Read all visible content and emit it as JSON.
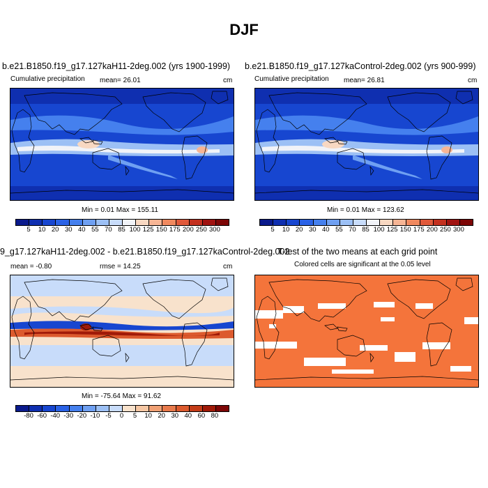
{
  "title": "DJF",
  "panel1": {
    "case": "b.e21.B1850.f19_g17.127kaH11-2deg.002 (yrs 1900-1999)",
    "left_label": "Cumulative precipitation",
    "mean": "mean=  26.01",
    "units": "cm",
    "minmax": "Min =  0.01 Max = 155.11"
  },
  "panel2": {
    "case": "b.e21.B1850.f19_g17.127kaControl-2deg.002 (yrs 900-999)",
    "left_label": "Cumulative precipitation",
    "mean": "mean=  26.81",
    "units": "cm",
    "minmax": "Min =   0.01 Max = 123.62"
  },
  "panel3": {
    "case": "9_g17.127kaH11-2deg.002 - b.e21.B1850.f19_g17.127kaControl-2deg.002",
    "mean": "mean =  -0.80",
    "rmse": "rmse =  14.25",
    "units": "cm",
    "minmax": "Min = -75.64 Max =  91.62"
  },
  "panel4": {
    "title": "T-test of the two means at each grid point",
    "subtitle": "Colored cells are significant at the 0.05 level"
  },
  "colorbar_precip": {
    "labels": [
      "5",
      "10",
      "20",
      "30",
      "40",
      "55",
      "70",
      "85",
      "100",
      "125",
      "150",
      "175",
      "200",
      "250",
      "300"
    ],
    "colors": [
      "#0a1a8c",
      "#0f2fb0",
      "#1746d0",
      "#2a62e6",
      "#4580ee",
      "#6fa0f2",
      "#9cc0f5",
      "#c8dcfa",
      "#f1f3f8",
      "#f8d8c2",
      "#f6b595",
      "#f0895f",
      "#e0593a",
      "#c3301f",
      "#a01210",
      "#7d0606"
    ]
  },
  "colorbar_diff": {
    "labels": [
      "-80",
      "-60",
      "-40",
      "-30",
      "-20",
      "-10",
      "-5",
      "0",
      "5",
      "10",
      "20",
      "30",
      "40",
      "60",
      "80"
    ],
    "colors": [
      "#0a1a8c",
      "#0f2fb0",
      "#1746d0",
      "#2a62e6",
      "#4580ee",
      "#6fa0f2",
      "#9cc0f5",
      "#c8dcfa",
      "#f8e2cc",
      "#f6c7a4",
      "#f0a074",
      "#e87a4c",
      "#dc5a2e",
      "#c43c18",
      "#a01a08",
      "#7d0606"
    ]
  },
  "ttest_color": "#f4743b"
}
